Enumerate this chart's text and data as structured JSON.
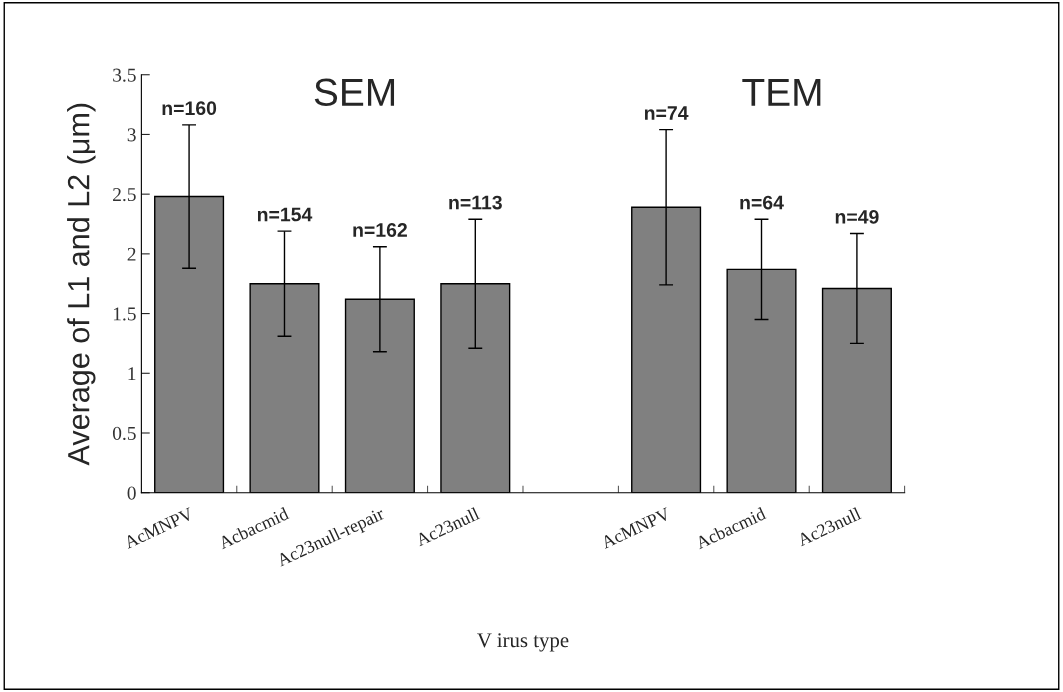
{
  "chart_data": {
    "type": "bar",
    "xlabel": "V irus type",
    "ylabel": "Average of L1 and L2 (μm)",
    "categories": [
      "AcMNPV",
      "Acbacmid",
      "Ac23null-repair",
      "Ac23null",
      null,
      "AcMNPV",
      "Acbacmid",
      "Ac23null"
    ],
    "values": [
      2.48,
      1.75,
      1.62,
      1.75,
      null,
      2.39,
      1.87,
      1.71
    ],
    "errors": [
      0.6,
      0.44,
      0.44,
      0.54,
      null,
      0.65,
      0.42,
      0.46
    ],
    "color": "#808080",
    "annotations": [
      "n=160",
      "n=154",
      "n=162",
      "n=113",
      "SEM",
      "n=74",
      "TEM",
      "n=64",
      "n=49"
    ],
    "ylim": [
      0,
      3.5
    ],
    "yticks": [
      0,
      0.5,
      1,
      1.5,
      2,
      2.5,
      3,
      3.5
    ],
    "grid": false,
    "legend": false
  }
}
